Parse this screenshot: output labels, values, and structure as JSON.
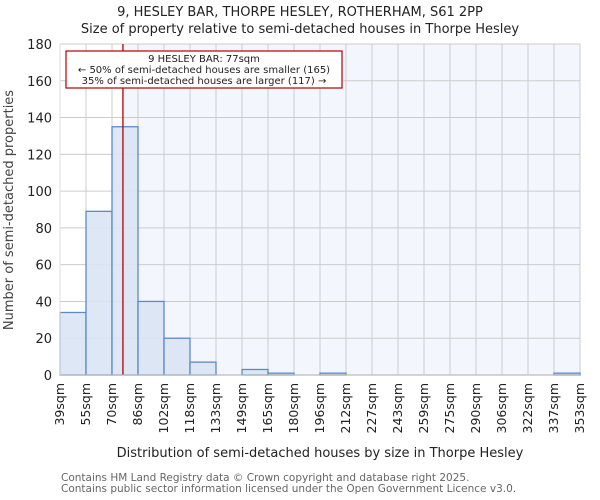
{
  "header": {
    "title": "9, HESLEY BAR, THORPE HESLEY, ROTHERHAM, S61 2PP",
    "subtitle": "Size of property relative to semi-detached houses in Thorpe Hesley"
  },
  "annotation": {
    "line1": "9 HESLEY BAR: 77sqm",
    "line2": "← 50% of semi-detached houses are smaller (165)",
    "line3": "35% of semi-detached houses are larger (117) →",
    "marker_value": 77
  },
  "footer": {
    "line1": "Contains HM Land Registry data © Crown copyright and database right 2025.",
    "line2": "Contains public sector information licensed under the Open Government Licence v3.0."
  },
  "colors": {
    "bar_fill": "#dae4f4",
    "bar_stroke": "#5b8ac9",
    "marker": "#b30000",
    "plot_bg": "#f3f6fd",
    "grid": "#cccccc"
  },
  "chart_data": {
    "type": "bar",
    "title": "9, HESLEY BAR, THORPE HESLEY, ROTHERHAM, S61 2PP",
    "subtitle": "Size of property relative to semi-detached houses in Thorpe Hesley",
    "xlabel": "Distribution of semi-detached houses by size in Thorpe Hesley",
    "ylabel": "Number of semi-detached properties",
    "categories": [
      "39sqm",
      "55sqm",
      "70sqm",
      "86sqm",
      "102sqm",
      "118sqm",
      "133sqm",
      "149sqm",
      "165sqm",
      "180sqm",
      "196sqm",
      "212sqm",
      "227sqm",
      "243sqm",
      "259sqm",
      "275sqm",
      "290sqm",
      "306sqm",
      "322sqm",
      "337sqm",
      "353sqm"
    ],
    "values": [
      34,
      89,
      135,
      40,
      20,
      7,
      0,
      3,
      1,
      0,
      1,
      0,
      0,
      0,
      0,
      0,
      0,
      0,
      0,
      1
    ],
    "yticks": [
      0,
      20,
      40,
      60,
      80,
      100,
      120,
      140,
      160,
      180
    ],
    "ylim": [
      0,
      180
    ],
    "grid": true,
    "marker_line": {
      "x": 77,
      "label": "9 HESLEY BAR: 77sqm"
    }
  }
}
